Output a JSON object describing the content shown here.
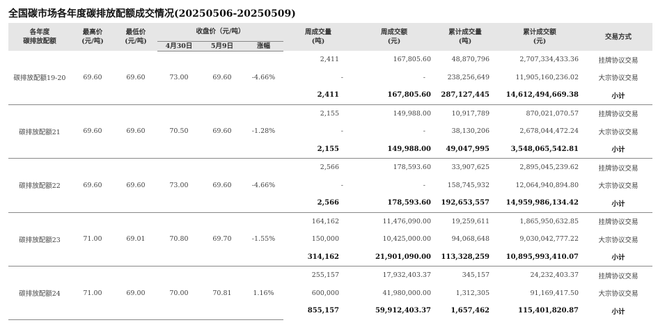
{
  "title": "全国碳市场各年度碳排放配额成交情况(20250506-20250509)",
  "headers": {
    "vintage": "各年度\n碳排放配额",
    "high": "最高价\n(元/吨)",
    "low": "最低价\n(元/吨)",
    "close_group": "收盘价（元/吨）",
    "close_apr30": "4月30日",
    "close_may9": "5月9日",
    "change": "涨幅",
    "week_vol": "周成交量\n(吨)",
    "week_amt": "周成交额\n(元)",
    "cum_vol": "累计成交量\n(吨)",
    "cum_amt": "累计成交额\n(元)",
    "mode": "交易方式"
  },
  "groups": [
    {
      "name": "碳排放配额19-20",
      "high": "69.60",
      "low": "69.60",
      "close_apr30": "73.00",
      "close_may9": "69.60",
      "change": "-4.66%",
      "rows": [
        {
          "week_vol": "2,411",
          "week_amt": "167,805.60",
          "cum_vol": "48,870,796",
          "cum_amt": "2,707,334,433.36",
          "mode": "挂牌协议交易"
        },
        {
          "week_vol": "-",
          "week_amt": "-",
          "cum_vol": "238,256,649",
          "cum_amt": "11,905,160,236.02",
          "mode": "大宗协议交易"
        },
        {
          "week_vol": "2,411",
          "week_amt": "167,805.60",
          "cum_vol": "287,127,445",
          "cum_amt": "14,612,494,669.38",
          "mode": "小计"
        }
      ]
    },
    {
      "name": "碳排放配额21",
      "high": "69.60",
      "low": "69.60",
      "close_apr30": "70.50",
      "close_may9": "69.60",
      "change": "-1.28%",
      "rows": [
        {
          "week_vol": "2,155",
          "week_amt": "149,988.00",
          "cum_vol": "10,917,789",
          "cum_amt": "870,021,070.57",
          "mode": "挂牌协议交易"
        },
        {
          "week_vol": "-",
          "week_amt": "-",
          "cum_vol": "38,130,206",
          "cum_amt": "2,678,044,472.24",
          "mode": "大宗协议交易"
        },
        {
          "week_vol": "2,155",
          "week_amt": "149,988.00",
          "cum_vol": "49,047,995",
          "cum_amt": "3,548,065,542.81",
          "mode": "小计"
        }
      ]
    },
    {
      "name": "碳排放配额22",
      "high": "69.60",
      "low": "69.60",
      "close_apr30": "73.00",
      "close_may9": "69.60",
      "change": "-4.66%",
      "rows": [
        {
          "week_vol": "2,566",
          "week_amt": "178,593.60",
          "cum_vol": "33,907,625",
          "cum_amt": "2,895,045,239.62",
          "mode": "挂牌协议交易"
        },
        {
          "week_vol": "-",
          "week_amt": "-",
          "cum_vol": "158,745,932",
          "cum_amt": "12,064,940,894.80",
          "mode": "大宗协议交易"
        },
        {
          "week_vol": "2,566",
          "week_amt": "178,593.60",
          "cum_vol": "192,653,557",
          "cum_amt": "14,959,986,134.42",
          "mode": "小计"
        }
      ]
    },
    {
      "name": "碳排放配额23",
      "high": "71.00",
      "low": "69.01",
      "close_apr30": "70.80",
      "close_may9": "69.70",
      "change": "-1.55%",
      "rows": [
        {
          "week_vol": "164,162",
          "week_amt": "11,476,090.00",
          "cum_vol": "19,259,611",
          "cum_amt": "1,865,950,632.85",
          "mode": "挂牌协议交易"
        },
        {
          "week_vol": "150,000",
          "week_amt": "10,425,000.00",
          "cum_vol": "94,068,648",
          "cum_amt": "9,030,042,777.22",
          "mode": "大宗协议交易"
        },
        {
          "week_vol": "314,162",
          "week_amt": "21,901,090.00",
          "cum_vol": "113,328,259",
          "cum_amt": "10,895,993,410.07",
          "mode": "小计"
        }
      ]
    },
    {
      "name": "碳排放配额24",
      "high": "71.00",
      "low": "69.00",
      "close_apr30": "70.00",
      "close_may9": "70.81",
      "change": "1.16%",
      "rows": [
        {
          "week_vol": "255,157",
          "week_amt": "17,932,403.37",
          "cum_vol": "345,157",
          "cum_amt": "24,232,403.37",
          "mode": "挂牌协议交易"
        },
        {
          "week_vol": "600,000",
          "week_amt": "41,980,000.00",
          "cum_vol": "1,312,305",
          "cum_amt": "91,169,417.50",
          "mode": "大宗协议交易"
        },
        {
          "week_vol": "855,157",
          "week_amt": "59,912,403.37",
          "cum_vol": "1,657,462",
          "cum_amt": "115,401,820.87",
          "mode": "小计"
        }
      ]
    }
  ]
}
